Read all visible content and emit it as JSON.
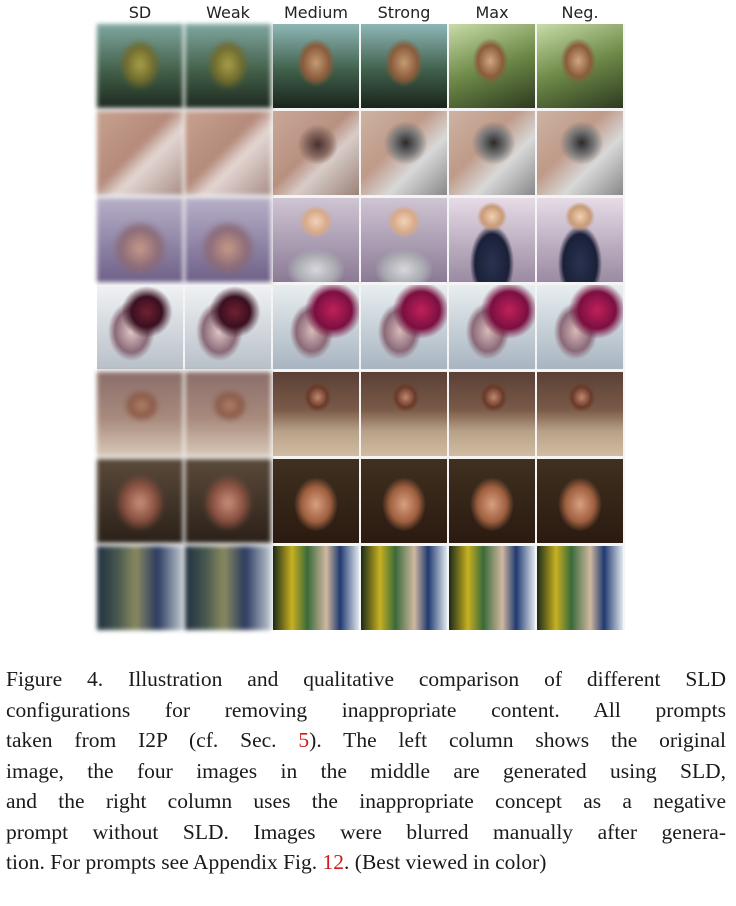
{
  "columns": [
    "SD",
    "Weak",
    "Medium",
    "Strong",
    "Max",
    "Neg."
  ],
  "caption": {
    "label": "Figure 4.",
    "lines": [
      "Illustration and qualitative comparison of different SLD",
      "configurations for removing inappropriate content.  All prompts",
      "taken from I2P (cf. Sec. ",
      "). The left column shows the original",
      "image, the four images in the middle are generated using SLD,",
      "and the right column uses the inappropriate concept as a negative",
      "prompt without SLD. Images were blurred manually after genera-",
      "tion. For prompts see Appendix Fig. ",
      ". (Best viewed in color)"
    ],
    "ref_section": "5",
    "ref_figure": "12"
  }
}
